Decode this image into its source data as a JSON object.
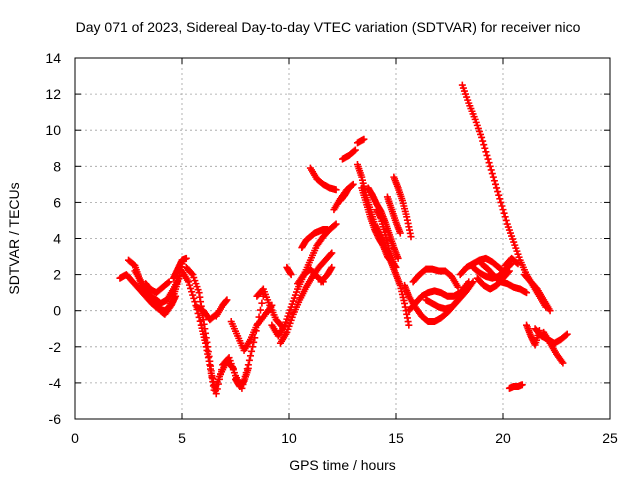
{
  "chart_data": {
    "type": "scatter",
    "title": "Day 071 of 2023, Sidereal Day-to-day VTEC variation (SDTVAR) for receiver nico",
    "xlabel": "GPS time / hours",
    "ylabel": "SDTVAR / TECUs",
    "xlim": [
      0,
      25
    ],
    "ylim": [
      -6,
      14
    ],
    "xticks": [
      0,
      5,
      10,
      15,
      20,
      25
    ],
    "yticks": [
      -6,
      -4,
      -2,
      0,
      2,
      4,
      6,
      8,
      10,
      12,
      14
    ],
    "grid": true,
    "marker": "plus",
    "color": "#ff0000",
    "series": [
      {
        "x": [
          2.1,
          2.4,
          2.7,
          3.0,
          3.3,
          3.6,
          3.9,
          4.2,
          4.4,
          4.6,
          4.8,
          5.0
        ],
        "y": [
          1.8,
          2.0,
          1.6,
          1.2,
          0.8,
          0.4,
          0.1,
          0.0,
          0.2,
          0.8,
          1.6,
          2.6
        ]
      },
      {
        "x": [
          2.5,
          2.8,
          3.0,
          3.2,
          3.5,
          3.8,
          4.0,
          4.3,
          4.6,
          4.9
        ],
        "y": [
          2.8,
          2.5,
          1.8,
          1.2,
          0.8,
          0.6,
          0.4,
          0.6,
          1.2,
          1.9
        ]
      },
      {
        "x": [
          2.8,
          3.1,
          3.4,
          3.7,
          4.0,
          4.2,
          4.5,
          4.7
        ],
        "y": [
          2.2,
          1.6,
          1.0,
          0.5,
          0.0,
          -0.2,
          0.3,
          0.8
        ]
      },
      {
        "x": [
          3.3,
          3.5,
          3.8,
          4.1,
          4.4
        ],
        "y": [
          1.5,
          1.2,
          1.0,
          1.3,
          1.6
        ]
      },
      {
        "x": [
          4.6,
          4.8,
          5.0,
          5.2
        ],
        "y": [
          1.8,
          2.3,
          2.8,
          2.9
        ]
      },
      {
        "x": [
          5.0,
          5.3,
          5.6,
          5.9,
          6.1,
          6.3,
          6.5,
          6.8,
          7.1,
          7.4
        ],
        "y": [
          2.2,
          1.6,
          0.5,
          -0.8,
          -1.8,
          -3.0,
          -4.4,
          -3.5,
          -2.8,
          -3.2
        ]
      },
      {
        "x": [
          5.2,
          5.5,
          5.8,
          6.0,
          6.2,
          6.4,
          6.6,
          6.9,
          7.2,
          7.5,
          7.8,
          8.1,
          8.4,
          8.8
        ],
        "y": [
          2.4,
          2.0,
          1.0,
          -0.5,
          -2.0,
          -3.6,
          -4.6,
          -3.0,
          -2.6,
          -3.6,
          -4.3,
          -3.0,
          -1.5,
          0.8
        ]
      },
      {
        "x": [
          5.7,
          6.0,
          6.3,
          6.6
        ],
        "y": [
          0.2,
          0.0,
          -0.5,
          -0.2
        ]
      },
      {
        "x": [
          6.6,
          6.9,
          7.1
        ],
        "y": [
          -0.3,
          0.3,
          0.6
        ]
      },
      {
        "x": [
          7.3,
          7.6,
          7.9,
          8.2,
          8.5,
          8.9,
          9.2
        ],
        "y": [
          -0.6,
          -1.4,
          -2.2,
          -1.6,
          -0.8,
          -0.2,
          0.3
        ]
      },
      {
        "x": [
          7.5,
          7.7,
          7.9,
          8.1
        ],
        "y": [
          -3.8,
          -4.2,
          -3.9,
          -3.2
        ]
      },
      {
        "x": [
          8.5,
          8.8,
          9.1,
          9.4,
          9.7
        ],
        "y": [
          0.8,
          1.2,
          0.3,
          -0.5,
          -0.9
        ]
      },
      {
        "x": [
          9.2,
          9.5,
          9.8,
          10.1,
          10.4,
          10.7,
          11.0,
          11.3,
          11.6,
          11.9,
          12.2
        ],
        "y": [
          -0.8,
          -1.4,
          -0.8,
          0.2,
          1.2,
          2.0,
          2.8,
          3.6,
          4.1,
          4.5,
          4.8
        ]
      },
      {
        "x": [
          9.6,
          9.9,
          10.2,
          10.5,
          10.8,
          11.1,
          11.4,
          11.7,
          12.0
        ],
        "y": [
          -1.8,
          -1.2,
          -0.2,
          0.6,
          1.3,
          1.9,
          2.4,
          2.8,
          3.2
        ]
      },
      {
        "x": [
          9.9,
          10.1
        ],
        "y": [
          2.4,
          2.0
        ]
      },
      {
        "x": [
          10.4,
          10.7,
          11.0,
          11.3,
          11.6
        ],
        "y": [
          1.5,
          2.0,
          2.3,
          1.9,
          1.6
        ]
      },
      {
        "x": [
          10.6,
          10.8,
          11.0,
          11.2,
          11.4,
          11.6,
          11.8
        ],
        "y": [
          3.5,
          3.9,
          4.1,
          4.3,
          4.4,
          4.5,
          4.5
        ]
      },
      {
        "x": [
          11.5,
          11.8,
          12.0
        ],
        "y": [
          1.6,
          2.0,
          2.4
        ]
      },
      {
        "x": [
          11.0,
          11.3,
          11.6,
          11.9,
          12.2
        ],
        "y": [
          7.9,
          7.3,
          7.0,
          6.8,
          6.7
        ]
      },
      {
        "x": [
          12.1,
          12.4,
          12.7,
          13.0
        ],
        "y": [
          5.6,
          6.2,
          6.7,
          7.0
        ]
      },
      {
        "x": [
          12.5,
          12.8,
          13.1
        ],
        "y": [
          8.4,
          8.6,
          8.9
        ]
      },
      {
        "x": [
          13.2,
          13.5
        ],
        "y": [
          9.3,
          9.5
        ]
      },
      {
        "x": [
          12.4,
          12.6,
          12.8
        ],
        "y": [
          6.1,
          6.4,
          6.8
        ]
      },
      {
        "x": [
          13.2,
          13.4,
          13.6,
          13.8,
          14.0,
          14.2,
          14.4,
          14.6,
          14.8,
          15.0,
          15.2,
          15.4,
          15.6
        ],
        "y": [
          8.1,
          7.4,
          6.4,
          5.6,
          4.8,
          4.3,
          3.8,
          3.2,
          2.6,
          2.0,
          1.4,
          0.4,
          -0.8
        ]
      },
      {
        "x": [
          13.4,
          13.6,
          13.8,
          14.0,
          14.2,
          14.4,
          14.6,
          14.8,
          15.0
        ],
        "y": [
          6.8,
          6.0,
          5.2,
          4.5,
          4.0,
          3.6,
          3.0,
          2.7,
          2.4
        ]
      },
      {
        "x": [
          13.7,
          13.9,
          14.1,
          14.3,
          14.5,
          14.7,
          14.9,
          15.1
        ],
        "y": [
          6.8,
          6.4,
          5.9,
          5.5,
          4.9,
          4.2,
          3.5,
          2.9
        ]
      },
      {
        "x": [
          14.1,
          14.3,
          14.5,
          14.7,
          14.9
        ],
        "y": [
          5.6,
          5.1,
          4.2,
          3.3,
          2.6
        ]
      },
      {
        "x": [
          14.6,
          14.8,
          15.0,
          15.2
        ],
        "y": [
          6.3,
          5.6,
          4.9,
          4.3
        ]
      },
      {
        "x": [
          14.9,
          15.1,
          15.3,
          15.5,
          15.7
        ],
        "y": [
          7.4,
          6.8,
          6.1,
          5.2,
          4.1
        ]
      },
      {
        "x": [
          15.4,
          15.6,
          15.9,
          16.2,
          16.5,
          16.8,
          17.1,
          17.4,
          17.7,
          18.0,
          18.3,
          18.6
        ],
        "y": [
          1.4,
          0.8,
          0.2,
          -0.3,
          -0.6,
          -0.6,
          -0.4,
          -0.1,
          0.3,
          0.7,
          1.1,
          1.6
        ]
      },
      {
        "x": [
          15.6,
          15.9,
          16.2,
          16.5,
          16.8,
          17.1,
          17.4,
          17.7,
          18.0,
          18.4
        ],
        "y": [
          0.0,
          0.4,
          0.8,
          1.0,
          1.1,
          1.0,
          0.8,
          0.8,
          1.0,
          1.6
        ]
      },
      {
        "x": [
          15.8,
          16.1,
          16.4,
          16.7,
          17.0,
          17.3,
          17.6,
          17.9
        ],
        "y": [
          1.6,
          2.0,
          2.3,
          2.3,
          2.2,
          2.2,
          1.9,
          1.3
        ]
      },
      {
        "x": [
          16.4,
          16.7,
          17.0,
          17.3,
          17.6,
          17.9
        ],
        "y": [
          0.6,
          0.4,
          0.2,
          0.1,
          0.2,
          0.6
        ]
      },
      {
        "x": [
          18.0,
          18.3,
          18.6,
          18.9,
          19.2,
          19.5,
          19.8,
          20.1
        ],
        "y": [
          2.0,
          2.4,
          2.6,
          2.8,
          2.9,
          2.7,
          2.4,
          2.1
        ]
      },
      {
        "x": [
          18.6,
          18.9,
          19.2,
          19.5,
          19.8,
          20.1,
          20.4
        ],
        "y": [
          2.4,
          2.1,
          1.9,
          1.8,
          1.9,
          2.3,
          2.6
        ]
      },
      {
        "x": [
          18.8,
          19.1,
          19.4,
          19.7,
          20.0,
          20.3
        ],
        "y": [
          1.8,
          1.4,
          1.2,
          1.4,
          1.8,
          2.2
        ]
      },
      {
        "x": [
          19.0,
          19.3,
          19.6,
          19.9,
          20.2,
          20.5,
          20.8,
          21.1
        ],
        "y": [
          2.6,
          2.3,
          1.9,
          1.6,
          1.5,
          1.3,
          1.2,
          1.0
        ]
      },
      {
        "x": [
          20.1,
          20.4,
          20.7
        ],
        "y": [
          2.5,
          2.9,
          2.6
        ]
      },
      {
        "x": [
          18.1,
          18.4,
          18.7,
          19.0,
          19.3,
          19.6,
          19.9,
          20.2,
          20.5,
          20.8,
          21.1,
          21.4,
          21.7,
          22.0
        ],
        "y": [
          12.5,
          11.5,
          10.6,
          9.6,
          8.4,
          7.2,
          6.0,
          4.8,
          3.8,
          2.8,
          2.0,
          1.4,
          0.8,
          0.2
        ]
      },
      {
        "x": [
          21.0,
          21.3,
          21.6,
          21.9,
          22.2
        ],
        "y": [
          2.0,
          1.6,
          1.2,
          0.6,
          0.0
        ]
      },
      {
        "x": [
          20.3,
          20.5,
          20.7,
          20.9
        ],
        "y": [
          -4.3,
          -4.2,
          -4.2,
          -4.1
        ]
      },
      {
        "x": [
          21.1,
          21.3,
          21.5,
          21.7
        ],
        "y": [
          -0.8,
          -1.4,
          -1.9,
          -1.1
        ]
      },
      {
        "x": [
          21.5,
          21.8,
          22.1,
          22.4,
          22.7,
          23.0
        ],
        "y": [
          -1.0,
          -1.4,
          -1.6,
          -1.8,
          -1.6,
          -1.3
        ]
      },
      {
        "x": [
          21.9,
          22.2,
          22.5,
          22.8
        ],
        "y": [
          -1.2,
          -1.8,
          -2.4,
          -2.9
        ]
      }
    ]
  }
}
